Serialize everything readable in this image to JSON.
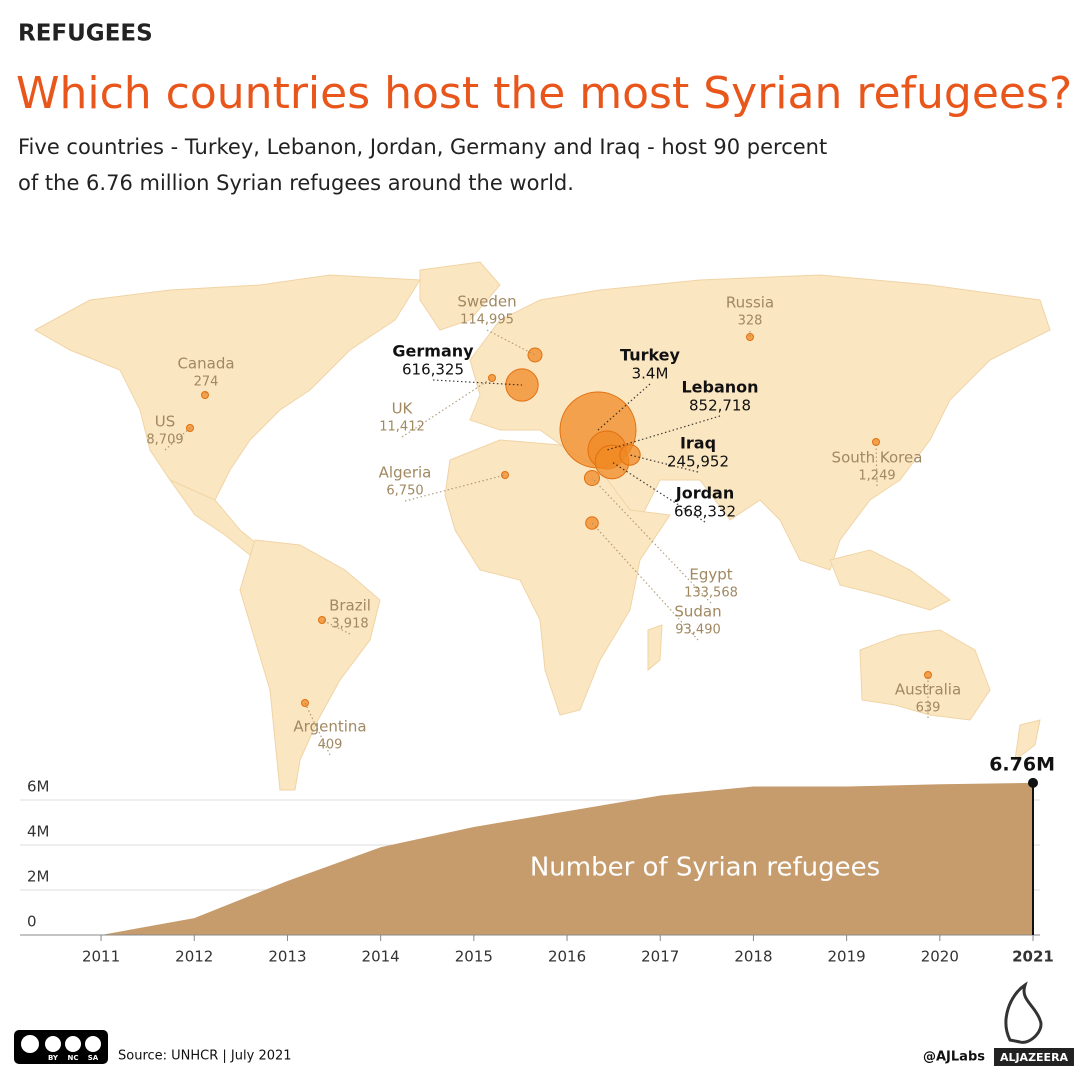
{
  "header": {
    "kicker": "REFUGEES",
    "title": "Which countries host the most Syrian refugees?",
    "subtitle": [
      "Five countries - Turkey, Lebanon, Jordan, Germany and Iraq - host 90 percent",
      "of the  6.76 million Syrian refugees around the world."
    ]
  },
  "chart_data": [
    {
      "type": "bubble-map",
      "categories": [
        "Turkey",
        "Lebanon",
        "Jordan",
        "Germany",
        "Iraq",
        "Egypt",
        "Sweden",
        "Sudan",
        "UK",
        "US",
        "Algeria",
        "Brazil",
        "South Korea",
        "Argentina",
        "Australia",
        "Russia",
        "Canada"
      ],
      "values": [
        3400000,
        852718,
        668332,
        616325,
        245952,
        133568,
        114995,
        93490,
        11412,
        8709,
        6750,
        3918,
        1249,
        409,
        639,
        328,
        274
      ],
      "value_labels": [
        "3.4M",
        "852,718",
        "668,332",
        "616,325",
        "245,952",
        "133,568",
        "114,995",
        "93,490",
        "11,412",
        "8,709",
        "6,750",
        "3,918",
        "1,249",
        null,
        null,
        null,
        null
      ],
      "color": "#f08a24",
      "label_colors": [
        "#111111",
        "#111111",
        "#111111",
        "#111111",
        "#111111",
        "#a08860",
        "#a08860",
        "#a08860",
        "#a08860",
        "#a08860",
        "#a08860",
        "#a08860",
        "#a08860",
        "#a08860",
        "#a08860",
        "#a08860",
        "#a08860"
      ]
    },
    {
      "type": "area",
      "annotation": "Number of Syrian refugees",
      "x": [
        2011,
        2012,
        2013,
        2014,
        2015,
        2016,
        2017,
        2018,
        2019,
        2020,
        2021
      ],
      "values": [
        0,
        750000,
        2400000,
        3900000,
        4800000,
        5500000,
        6200000,
        6600000,
        6600000,
        6700000,
        6760000
      ],
      "value_labels": [
        null,
        null,
        null,
        null,
        null,
        null,
        null,
        null,
        null,
        null,
        "6.76M"
      ],
      "color": "#c69c6d",
      "xlim": [
        2010.13,
        2021
      ],
      "xticks": [
        2011,
        2012,
        2013,
        2014,
        2015,
        2016,
        2017,
        2018,
        2019,
        2020,
        2021
      ],
      "ylim": [
        0,
        7000000
      ],
      "yticks": [
        0,
        {
          "value": 2000000,
          "label": "2M"
        },
        {
          "value": 4000000,
          "label": "4M"
        },
        {
          "value": 6000000,
          "label": "6M"
        }
      ],
      "grid": true
    }
  ],
  "footer": {
    "license": [
      "BY",
      "NC",
      "SA"
    ],
    "source": "Source: UNHCR | July 2021",
    "handle": "@AJLabs",
    "brand": "ALJAZEERA"
  }
}
